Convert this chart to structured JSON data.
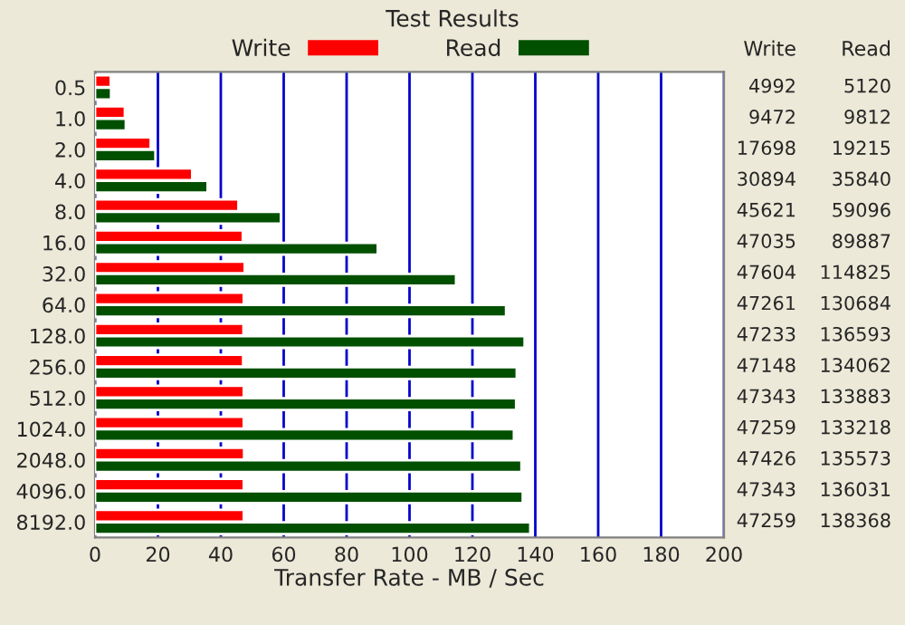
{
  "chart_data": {
    "type": "bar",
    "orientation": "horizontal",
    "title": "Test Results",
    "xlabel": "Transfer Rate - MB / Sec",
    "categories": [
      "0.5",
      "1.0",
      "2.0",
      "4.0",
      "8.0",
      "16.0",
      "32.0",
      "64.0",
      "128.0",
      "256.0",
      "512.0",
      "1024.0",
      "2048.0",
      "4096.0",
      "8192.0"
    ],
    "series": [
      {
        "name": "Write",
        "color": "#ff0000",
        "values": [
          5.0,
          9.5,
          17.7,
          30.9,
          45.6,
          47.0,
          47.6,
          47.3,
          47.2,
          47.1,
          47.3,
          47.3,
          47.4,
          47.3,
          47.3
        ]
      },
      {
        "name": "Read",
        "color": "#005000",
        "values": [
          5.1,
          9.8,
          19.2,
          35.8,
          59.1,
          89.9,
          114.8,
          130.7,
          136.6,
          134.1,
          133.9,
          133.2,
          135.6,
          136.0,
          138.4
        ]
      }
    ],
    "annotations": [
      "4992",
      "5120",
      "9472",
      "9812",
      "17698",
      "19215",
      "30894",
      "35840",
      "45621",
      "59096",
      "47035",
      "89887",
      "47604",
      "114825",
      "47261",
      "130684",
      "47233",
      "136593",
      "47148",
      "134062",
      "47343",
      "133883",
      "47259",
      "133218",
      "47426",
      "135573",
      "47343",
      "136031",
      "47259",
      "138368"
    ],
    "xlim": [
      0,
      200
    ],
    "xticks": [
      0,
      20,
      40,
      60,
      80,
      100,
      120,
      140,
      160,
      180,
      200
    ],
    "grid": "x",
    "legend": "top"
  }
}
